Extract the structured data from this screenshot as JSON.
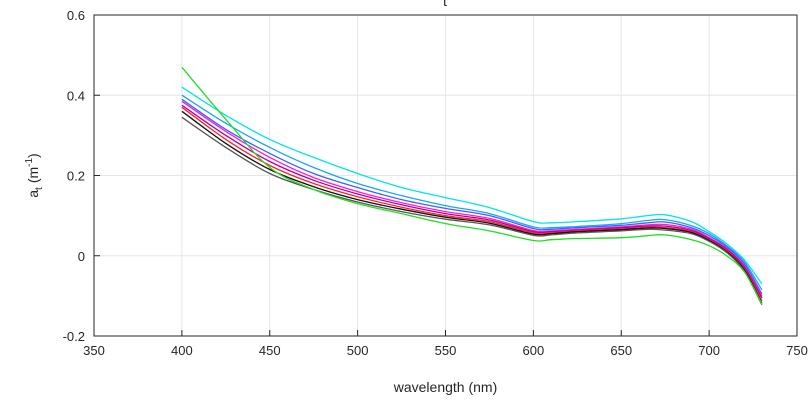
{
  "chart_data": {
    "type": "line",
    "title_fragment": "t",
    "xlabel": "wavelength (nm)",
    "ylabel": "a",
    "ylabel_subscript": "t",
    "ylabel_unit": "(m",
    "ylabel_unit_sup": "-1",
    "ylabel_unit_close": ")",
    "xlim": [
      350,
      750
    ],
    "ylim": [
      -0.2,
      0.6
    ],
    "xticks": [
      350,
      400,
      450,
      500,
      550,
      600,
      650,
      700,
      750
    ],
    "yticks": [
      -0.2,
      0,
      0.2,
      0.4,
      0.6
    ],
    "xtick_labels": [
      "350",
      "400",
      "450",
      "500",
      "550",
      "600",
      "650",
      "700",
      "750"
    ],
    "ytick_labels": [
      "-0.2",
      "0",
      "0.2",
      "0.4",
      "0.6"
    ],
    "grid": true,
    "legend": "none",
    "x": [
      400,
      425,
      450,
      475,
      500,
      525,
      550,
      575,
      600,
      610,
      625,
      650,
      665,
      675,
      690,
      700,
      710,
      720,
      730
    ],
    "series": [
      {
        "color": "#00e5e5",
        "values": [
          0.42,
          0.35,
          0.29,
          0.245,
          0.205,
          0.17,
          0.145,
          0.12,
          0.085,
          0.082,
          0.085,
          0.092,
          0.1,
          0.102,
          0.085,
          0.06,
          0.03,
          -0.01,
          -0.07
        ]
      },
      {
        "color": "#1aa3ff",
        "values": [
          0.4,
          0.33,
          0.27,
          0.22,
          0.18,
          0.15,
          0.125,
          0.105,
          0.072,
          0.07,
          0.073,
          0.08,
          0.088,
          0.09,
          0.075,
          0.055,
          0.025,
          -0.015,
          -0.085
        ]
      },
      {
        "color": "#3366ff",
        "values": [
          0.39,
          0.315,
          0.255,
          0.205,
          0.17,
          0.14,
          0.118,
          0.1,
          0.068,
          0.066,
          0.07,
          0.076,
          0.082,
          0.084,
          0.07,
          0.05,
          0.022,
          -0.02,
          -0.095
        ]
      },
      {
        "color": "#ff1ad9",
        "values": [
          0.385,
          0.31,
          0.245,
          0.195,
          0.16,
          0.132,
          0.11,
          0.093,
          0.063,
          0.062,
          0.066,
          0.072,
          0.077,
          0.078,
          0.066,
          0.045,
          0.018,
          -0.025,
          -0.1
        ]
      },
      {
        "color": "#b3009f",
        "values": [
          0.375,
          0.3,
          0.235,
          0.188,
          0.154,
          0.127,
          0.105,
          0.089,
          0.06,
          0.06,
          0.064,
          0.07,
          0.074,
          0.074,
          0.063,
          0.043,
          0.016,
          -0.028,
          -0.105
        ]
      },
      {
        "color": "#ff2222",
        "values": [
          0.37,
          0.29,
          0.225,
          0.18,
          0.147,
          0.121,
          0.1,
          0.085,
          0.057,
          0.057,
          0.062,
          0.067,
          0.071,
          0.07,
          0.06,
          0.04,
          0.012,
          -0.032,
          -0.112
        ]
      },
      {
        "color": "#111111",
        "values": [
          0.36,
          0.28,
          0.215,
          0.172,
          0.14,
          0.116,
          0.096,
          0.081,
          0.054,
          0.055,
          0.06,
          0.065,
          0.069,
          0.068,
          0.058,
          0.038,
          0.01,
          -0.035,
          -0.118
        ]
      },
      {
        "color": "#555555",
        "values": [
          0.345,
          0.27,
          0.205,
          0.165,
          0.134,
          0.11,
          0.091,
          0.077,
          0.051,
          0.052,
          0.057,
          0.062,
          0.066,
          0.064,
          0.055,
          0.036,
          0.008,
          -0.038,
          -0.122
        ]
      },
      {
        "color": "#22dd22",
        "values": [
          0.47,
          0.34,
          0.22,
          0.165,
          0.13,
          0.105,
          0.08,
          0.062,
          0.038,
          0.04,
          0.043,
          0.045,
          0.05,
          0.052,
          0.04,
          0.025,
          0.0,
          -0.04,
          -0.12
        ]
      }
    ]
  }
}
